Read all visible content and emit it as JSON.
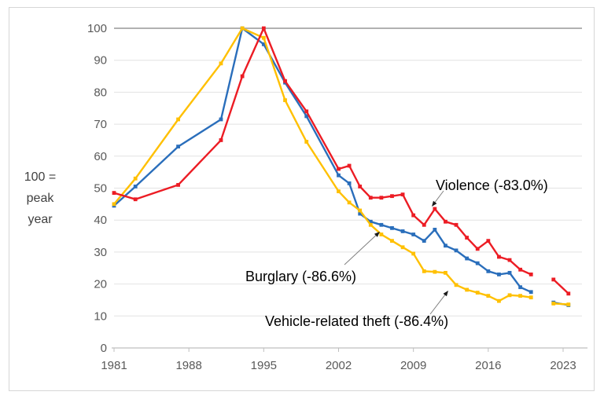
{
  "figure": {
    "side_note": "100 =\npeak\nyear"
  },
  "annotations": {
    "violence": "Violence (-83.0%)",
    "burglary": "Burglary (-86.6%)",
    "vehicle": "Vehicle-related theft (-86.4%)"
  },
  "colors": {
    "violence": "#ec1c24",
    "burglary": "#2a6ebb",
    "vehicle": "#ffc000",
    "gridline": "#e2e2e2",
    "gridline_top": "#a6a6a6",
    "axis": "#bfbfbf",
    "tick_text": "#595959",
    "note_text": "#404040",
    "arrow_line": "#808080",
    "arrow_head": "#1a1a1a",
    "frame": "#d6d6d6"
  },
  "chart_data": {
    "type": "line",
    "title": "",
    "xlabel": "",
    "ylabel": "100 = peak year",
    "x_tick_labels": [
      1981,
      1988,
      1995,
      2002,
      2009,
      2016,
      2023
    ],
    "y_tick_labels": [
      0,
      10,
      20,
      30,
      40,
      50,
      60,
      70,
      80,
      90,
      100
    ],
    "ylim": [
      0,
      100
    ],
    "xlim": [
      1981,
      2024.5
    ],
    "grid": "horizontal",
    "legend_position": "inline-annotations",
    "gap_note": "no survey data between 2020 and 2022 points (break in all lines)",
    "gap_before_index": 27,
    "x": [
      1981,
      1983,
      1987,
      1991,
      1993,
      1995,
      1997,
      1999,
      2002,
      2003,
      2004,
      2005,
      2006,
      2007,
      2008,
      2009,
      2010,
      2011,
      2012,
      2013,
      2014,
      2015,
      2016,
      2017,
      2018,
      2019,
      2020,
      2022.1,
      2023.5
    ],
    "series": [
      {
        "name": "Violence",
        "change_from_peak": "-83.0%",
        "peak_year": 1995,
        "values": [
          48.5,
          46.5,
          51,
          65,
          85,
          100,
          83.5,
          74,
          56,
          57,
          50.5,
          47,
          47,
          47.5,
          48,
          41.5,
          38.5,
          43.5,
          39.5,
          38.5,
          34.5,
          31,
          33.5,
          28.5,
          27.5,
          24.5,
          23,
          21.4,
          17.0
        ]
      },
      {
        "name": "Burglary",
        "change_from_peak": "-86.6%",
        "peak_year": 1993,
        "values": [
          44.5,
          50.5,
          63,
          71.5,
          100,
          95,
          83,
          72.5,
          54,
          51.5,
          42,
          39.5,
          38.5,
          37.5,
          36.5,
          35.5,
          33.5,
          37,
          32,
          30.5,
          28,
          26.5,
          24,
          23,
          23.5,
          19,
          17.5,
          14.2,
          13.4
        ]
      },
      {
        "name": "Vehicle-related theft",
        "change_from_peak": "-86.4%",
        "peak_year": 1993,
        "values": [
          45,
          53,
          71.5,
          89,
          100,
          97,
          77.5,
          64.5,
          49,
          45.5,
          43,
          38.5,
          35.5,
          33.5,
          31.5,
          29.5,
          24,
          23.8,
          23.5,
          19.7,
          18.2,
          17.3,
          16.3,
          14.7,
          16.5,
          16.3,
          15.8,
          13.9,
          13.6
        ]
      }
    ]
  }
}
